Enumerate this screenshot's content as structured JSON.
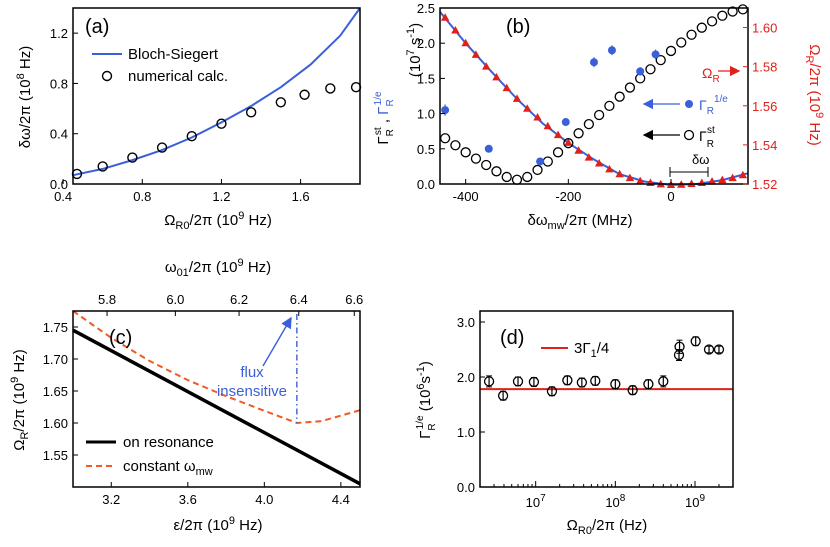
{
  "colors": {
    "blue": "#3a5fd9",
    "red": "#e0201a",
    "orange": "#f05a24",
    "black": "#000000"
  },
  "chart_data": [
    {
      "id": "a",
      "type": "line+scatter",
      "panel_label": "(a)",
      "xlabel": "Ω_R0/2π (10^9 Hz)",
      "ylabel": "δω/2π (10^8 Hz)",
      "xlim": [
        0.45,
        1.9
      ],
      "ylim": [
        0,
        1.4
      ],
      "xticks": [
        "0.4",
        "0.8",
        "1.2",
        "1.6"
      ],
      "xtick_values": [
        0.4,
        0.8,
        1.2,
        1.6
      ],
      "yticks": [
        "0.0",
        "0.4",
        "0.8",
        "1.2"
      ],
      "ytick_values": [
        0,
        0.4,
        0.8,
        1.2
      ],
      "legend": {
        "line": "Bloch-Siegert",
        "markers": "numerical calc."
      },
      "series": [
        {
          "name": "Bloch-Siegert",
          "style": "line",
          "x": [
            0.45,
            0.6,
            0.75,
            0.9,
            1.05,
            1.2,
            1.35,
            1.5,
            1.65,
            1.8,
            1.9
          ],
          "y": [
            0.07,
            0.12,
            0.19,
            0.27,
            0.37,
            0.49,
            0.62,
            0.77,
            0.95,
            1.18,
            1.4
          ]
        },
        {
          "name": "numerical calc.",
          "style": "open-circle",
          "x": [
            0.47,
            0.6,
            0.75,
            0.9,
            1.05,
            1.2,
            1.35,
            1.5,
            1.62,
            1.75,
            1.88
          ],
          "y": [
            0.08,
            0.14,
            0.21,
            0.29,
            0.38,
            0.48,
            0.57,
            0.65,
            0.71,
            0.76,
            0.77
          ]
        }
      ]
    },
    {
      "id": "b",
      "type": "scatter+line",
      "panel_label": "(b)",
      "xlabel": "δω_mw/2π (MHz)",
      "ylabel_left": "Γ_R^st , Γ_R^1/e (10^7 s^-1)",
      "ylabel_right": "Ω_R/2π (10^9 Hz)",
      "xlim": [
        -450,
        150
      ],
      "ylim_left": [
        0,
        2.5
      ],
      "ylim_right": [
        1.52,
        1.61
      ],
      "xticks": [
        "-400",
        "-200",
        "0"
      ],
      "xtick_values": [
        -400,
        -200,
        0
      ],
      "yticks_left": [
        "0.0",
        "0.5",
        "1.0",
        "1.5",
        "2.0",
        "2.5"
      ],
      "ytick_left_values": [
        0,
        0.5,
        1.0,
        1.5,
        2.0,
        2.5
      ],
      "yticks_right": [
        "1.52",
        "1.54",
        "1.56",
        "1.58",
        "1.60"
      ],
      "ytick_right_values": [
        1.52,
        1.54,
        1.56,
        1.58,
        1.6
      ],
      "annotations": {
        "omega": "Ω_R",
        "gamma_1e": "Γ_R^1/e",
        "gamma_st": "Γ_R^st",
        "delta": "δω"
      },
      "series": [
        {
          "name": "Ω_R",
          "axis": "right",
          "style": "red-triangle",
          "x": [
            -440,
            -420,
            -400,
            -380,
            -360,
            -340,
            -320,
            -300,
            -280,
            -260,
            -240,
            -220,
            -200,
            -180,
            -160,
            -140,
            -120,
            -100,
            -80,
            -60,
            -40,
            -20,
            0,
            20,
            40,
            60,
            80,
            100,
            120,
            140
          ],
          "y": [
            1.605,
            1.5985,
            1.592,
            1.586,
            1.58,
            1.5745,
            1.569,
            1.5635,
            1.5585,
            1.554,
            1.5495,
            1.545,
            1.541,
            1.537,
            1.5335,
            1.5305,
            1.5275,
            1.525,
            1.523,
            1.5215,
            1.5205,
            1.5198,
            1.5195,
            1.5196,
            1.52,
            1.5205,
            1.5212,
            1.522,
            1.523,
            1.5245
          ]
        },
        {
          "name": "Ω_R fit",
          "axis": "right",
          "style": "blue-line",
          "x": [
            -450,
            -400,
            -350,
            -300,
            -250,
            -200,
            -150,
            -100,
            -50,
            0,
            50,
            100,
            150
          ],
          "y": [
            1.608,
            1.592,
            1.5775,
            1.5635,
            1.551,
            1.541,
            1.5325,
            1.525,
            1.5212,
            1.5195,
            1.52,
            1.522,
            1.5255
          ]
        },
        {
          "name": "Γ_R^1/e",
          "axis": "left",
          "style": "blue-filled-circle",
          "x": [
            -440,
            -355,
            -255,
            -205,
            -150,
            -115,
            -60,
            -30
          ],
          "y": [
            1.05,
            0.5,
            0.32,
            0.88,
            1.73,
            1.9,
            1.6,
            1.84
          ],
          "err": [
            0.08,
            0.04,
            0.04,
            0.05,
            0.07,
            0.07,
            0.06,
            0.07
          ]
        },
        {
          "name": "Γ_R^st",
          "axis": "left",
          "style": "open-circle",
          "x": [
            -440,
            -420,
            -400,
            -380,
            -360,
            -340,
            -320,
            -300,
            -280,
            -260,
            -240,
            -220,
            -200,
            -180,
            -160,
            -140,
            -120,
            -100,
            -80,
            -60,
            -40,
            -20,
            0,
            20,
            40,
            60,
            80,
            100,
            120,
            140
          ],
          "y": [
            0.65,
            0.55,
            0.45,
            0.36,
            0.27,
            0.18,
            0.1,
            0.06,
            0.1,
            0.2,
            0.32,
            0.45,
            0.58,
            0.72,
            0.85,
            0.98,
            1.11,
            1.24,
            1.37,
            1.5,
            1.63,
            1.76,
            1.89,
            2.01,
            2.12,
            2.22,
            2.31,
            2.39,
            2.45,
            2.48
          ]
        }
      ]
    },
    {
      "id": "c",
      "type": "line",
      "panel_label": "(c)",
      "xlabel": "ε/2π (10^9 Hz)",
      "ylabel": "Ω_R/2π (10^9 Hz)",
      "top_xlabel": "ω_01/2π (10^9 Hz)",
      "xlim": [
        3.0,
        4.5
      ],
      "ylim": [
        1.5,
        1.775
      ],
      "xticks": [
        "3.2",
        "3.6",
        "4.0",
        "4.4"
      ],
      "xtick_values": [
        3.2,
        3.6,
        4.0,
        4.4
      ],
      "yticks": [
        "1.55",
        "1.60",
        "1.65",
        "1.70",
        "1.75"
      ],
      "ytick_values": [
        1.55,
        1.6,
        1.65,
        1.7,
        1.75
      ],
      "top_xticks": [
        "5.8",
        "6.0",
        "6.2",
        "6.4",
        "6.6"
      ],
      "top_xtick_positions_eps": [
        3.178,
        3.535,
        3.868,
        4.18,
        4.47
      ],
      "legend": {
        "black": "on resonance",
        "orange": "constant ω_mw"
      },
      "annotation": {
        "line1": "flux",
        "line2": "insensitive",
        "eps": 4.17
      },
      "series": [
        {
          "name": "on resonance",
          "style": "black-thick-line",
          "x": [
            3.0,
            4.5
          ],
          "y": [
            1.745,
            1.505
          ]
        },
        {
          "name": "constant ω_mw",
          "style": "orange-dashed",
          "x": [
            3.0,
            3.2,
            3.4,
            3.6,
            3.8,
            4.0,
            4.17,
            4.3,
            4.5
          ],
          "y": [
            1.775,
            1.733,
            1.697,
            1.667,
            1.642,
            1.619,
            1.6,
            1.603,
            1.62
          ]
        }
      ]
    },
    {
      "id": "d",
      "type": "scatter",
      "panel_label": "(d)",
      "xlabel": "Ω_R0/2π (Hz)",
      "ylabel": "Γ_R^1/e (10^6 s^-1)",
      "xscale": "log",
      "xlim": [
        2000000,
        3000000000
      ],
      "ylim": [
        0,
        3.2
      ],
      "xticks": [
        "10^7",
        "10^8",
        "10^9"
      ],
      "xtick_values": [
        10000000,
        100000000,
        1000000000
      ],
      "yticks": [
        "0.0",
        "1.0",
        "2.0",
        "3.0"
      ],
      "ytick_values": [
        0,
        1,
        2,
        3
      ],
      "hline": {
        "label": "3Γ_1/4",
        "y": 1.78
      },
      "series": [
        {
          "name": "Γ_R^1/e",
          "style": "open-circle-errorbar",
          "x": [
            2600000,
            3900000,
            6000000,
            9500000,
            16000000,
            25000000,
            38000000,
            56000000,
            100000000,
            165000000,
            260000000,
            400000000,
            630000000,
            640000000,
            1020000000,
            1500000000,
            2000000000
          ],
          "y": [
            1.92,
            1.66,
            1.92,
            1.91,
            1.74,
            1.94,
            1.9,
            1.93,
            1.87,
            1.76,
            1.87,
            1.92,
            2.4,
            2.55,
            2.65,
            2.5,
            2.5
          ],
          "err": [
            0.1,
            0.08,
            0.08,
            0.08,
            0.08,
            0.08,
            0.08,
            0.08,
            0.08,
            0.08,
            0.08,
            0.1,
            0.1,
            0.12,
            0.08,
            0.06,
            0.06
          ]
        }
      ]
    }
  ]
}
